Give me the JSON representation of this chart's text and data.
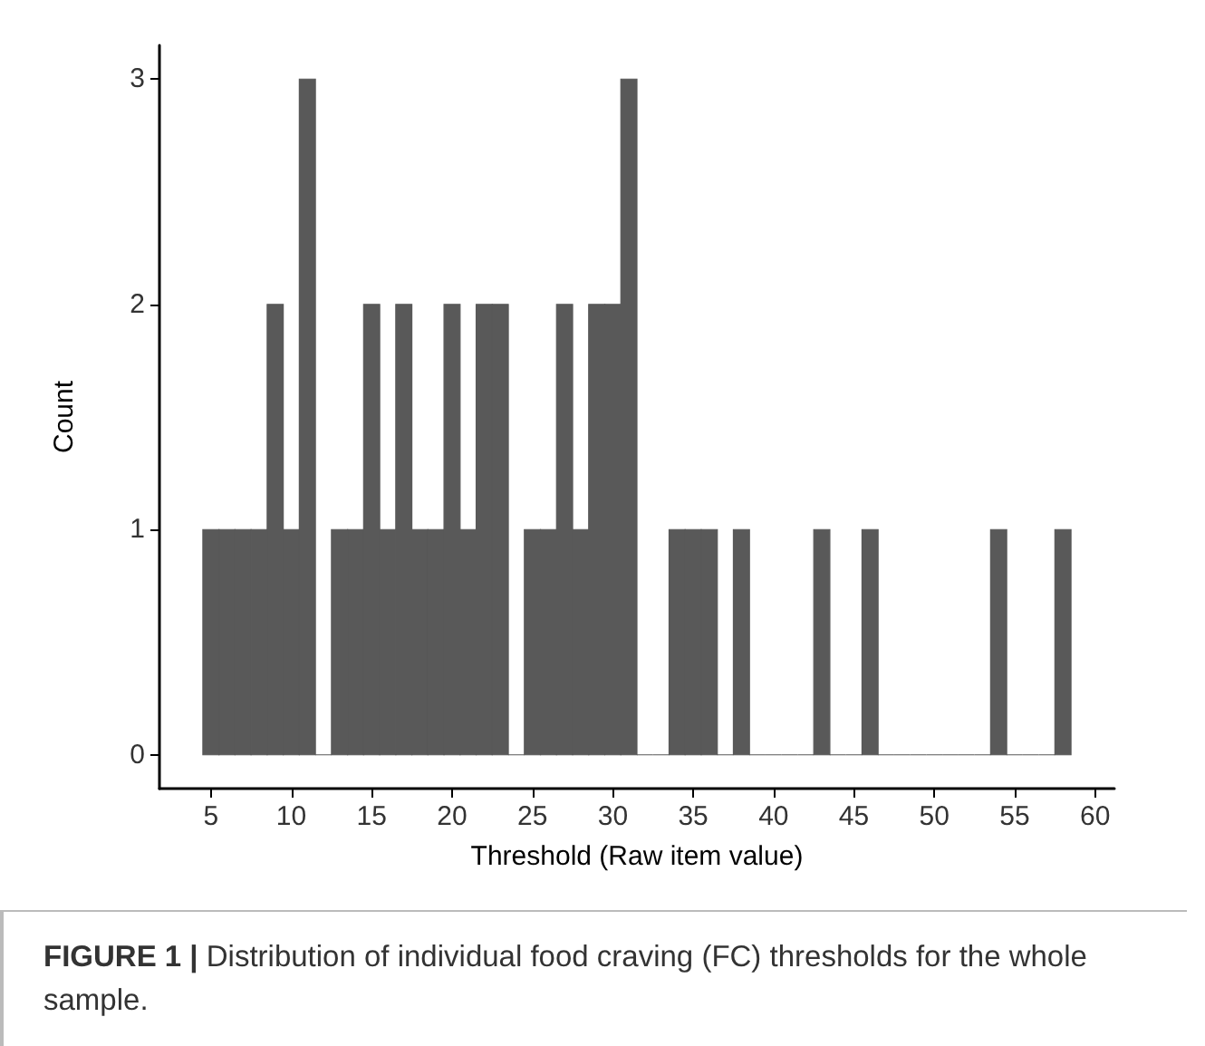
{
  "chart_data": {
    "type": "histogram",
    "xlabel": "Threshold (Raw item value)",
    "ylabel": "Count",
    "bins": [
      4.5,
      5.5,
      6.5,
      7.5,
      8.5,
      9.5,
      10.5,
      11.5,
      12.5,
      13.5,
      14.5,
      15.5,
      16.5,
      17.5,
      18.5,
      19.5,
      20.5,
      21.5,
      22.5,
      23.5,
      24.5,
      25.5,
      26.5,
      27.5,
      28.5,
      29.5,
      30.5,
      31.5,
      32.5,
      33.5,
      34.5,
      35.5,
      36.5,
      37.5,
      38.5,
      39.5,
      40.5,
      41.5,
      42.5,
      43.5,
      44.5,
      45.5,
      46.5,
      47.5,
      48.5,
      49.5,
      50.5,
      51.5,
      52.5,
      53.5,
      54.5,
      55.5,
      56.5,
      57.5,
      58.5
    ],
    "values": [
      1,
      1,
      1,
      1,
      2,
      1,
      3,
      0,
      1,
      1,
      2,
      1,
      2,
      1,
      1,
      2,
      1,
      2,
      2,
      0,
      1,
      1,
      2,
      1,
      2,
      2,
      3,
      0,
      0,
      1,
      1,
      1,
      0,
      1,
      0,
      0,
      0,
      0,
      1,
      0,
      0,
      1,
      0,
      0,
      0,
      0,
      0,
      0,
      0,
      1,
      0,
      0,
      0,
      1
    ],
    "color": "#595959",
    "xlim": [
      1.8,
      61.2
    ],
    "xticks": [
      5,
      10,
      15,
      20,
      25,
      30,
      35,
      40,
      45,
      50,
      55,
      60
    ],
    "ylim": [
      -0.15,
      3.15
    ],
    "yticks": [
      0,
      1,
      2,
      3
    ],
    "grid": false,
    "annotations": [
      "FIGURE 1 | Distribution of individual food craving (FC) thresholds for the whole sample."
    ]
  }
}
